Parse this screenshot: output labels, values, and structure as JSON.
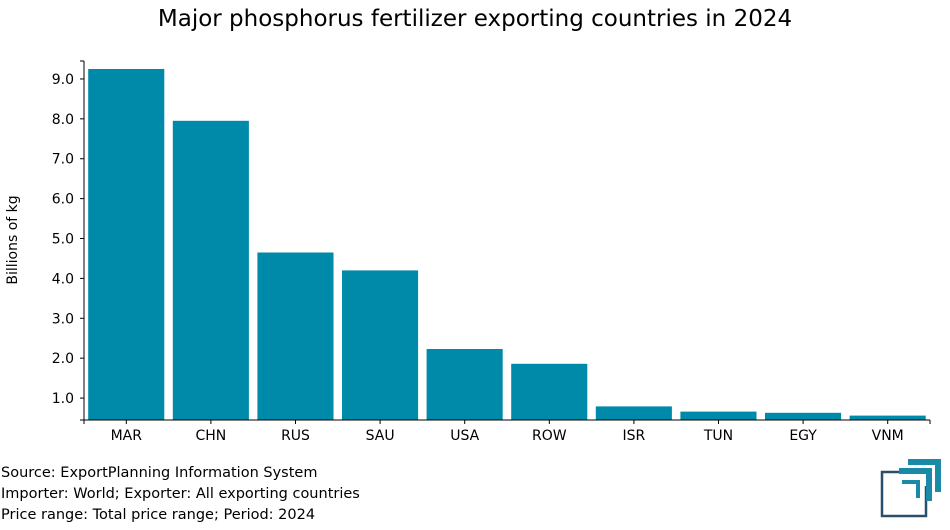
{
  "chart_data": {
    "type": "bar",
    "title": "Major phosphorus fertilizer exporting countries in 2024",
    "xlabel": "",
    "ylabel": "Billions of kg",
    "categories": [
      "MAR",
      "CHN",
      "RUS",
      "SAU",
      "USA",
      "ROW",
      "ISR",
      "TUN",
      "EGY",
      "VNM"
    ],
    "values": [
      9.25,
      7.95,
      4.65,
      4.2,
      2.23,
      1.86,
      0.79,
      0.66,
      0.63,
      0.56
    ],
    "ylim": [
      0.45,
      9.45
    ],
    "yticks": [
      1.0,
      2.0,
      3.0,
      4.0,
      5.0,
      6.0,
      7.0,
      8.0,
      9.0
    ],
    "ytick_labels": [
      "1.0",
      "2.0",
      "3.0",
      "4.0",
      "5.0",
      "6.0",
      "7.0",
      "8.0",
      "9.0"
    ],
    "bar_color": "#008aaa",
    "grid": false
  },
  "footer": {
    "source": "Source: ExportPlanning Information System",
    "importer": "Importer: World; Exporter: All exporting countries",
    "price": "Price range: Total price range; Period: 2024"
  },
  "logo": {
    "icon": "export-planning-logo",
    "color": "#1a8aa6",
    "dark_color": "#2a4f6a"
  }
}
